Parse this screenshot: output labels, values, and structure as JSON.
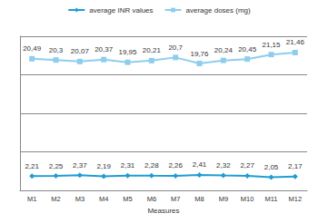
{
  "chart_data": {
    "type": "line",
    "categories": [
      "M1",
      "M2",
      "M3",
      "M4",
      "M5",
      "M6",
      "M7",
      "M8",
      "M9",
      "M10",
      "M11",
      "M12"
    ],
    "x_label": "Measures",
    "series": [
      {
        "name": "average INR values",
        "color": "#1f9dd3",
        "marker": "diamond",
        "values": [
          2.21,
          2.25,
          2.37,
          2.19,
          2.31,
          2.28,
          2.26,
          2.41,
          2.32,
          2.27,
          2.05,
          2.17
        ],
        "value_labels": [
          "2,21",
          "2,25",
          "2,37",
          "2,19",
          "2,31",
          "2,28",
          "2,26",
          "2,41",
          "2,32",
          "2,27",
          "2,05",
          "2,17"
        ]
      },
      {
        "name": "average doses (mg)",
        "color": "#8ecdee",
        "marker": "square",
        "values": [
          20.49,
          20.3,
          20.07,
          20.37,
          19.95,
          20.21,
          20.7,
          19.76,
          20.24,
          20.45,
          21.15,
          21.46
        ],
        "value_labels": [
          "20,49",
          "20,3",
          "20,07",
          "20,37",
          "19,95",
          "20,21",
          "20,7",
          "19,76",
          "20,24",
          "20,45",
          "21,15",
          "21,46"
        ]
      }
    ],
    "ylim": [
      0,
      24
    ],
    "yticks": [
      0,
      6,
      12,
      18,
      24
    ],
    "grid": true,
    "legend": "top",
    "data_labels": true,
    "tick_labels": "x"
  }
}
